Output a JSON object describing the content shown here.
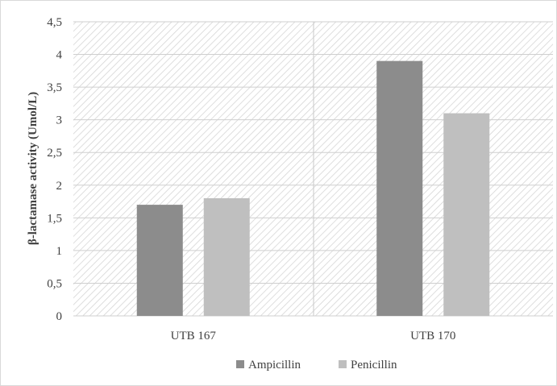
{
  "chart_data": {
    "type": "bar",
    "categories": [
      "UTB 167",
      "UTB 170"
    ],
    "series": [
      {
        "name": "Ampicillin",
        "values": [
          1.7,
          3.9
        ],
        "color": "#8c8c8c"
      },
      {
        "name": "Penicillin",
        "values": [
          1.8,
          3.1
        ],
        "color": "#bfbfbf"
      }
    ],
    "title": "",
    "xlabel": "",
    "ylabel": "β-lactamase activity (Umol/L)",
    "ylim": [
      0,
      4.5
    ],
    "yticks": [
      "0",
      "0,5",
      "1",
      "1,5",
      "2",
      "2,5",
      "3",
      "3,5",
      "4",
      "4,5"
    ],
    "grid": true,
    "plot_background": "hatched",
    "legend_position": "bottom"
  }
}
